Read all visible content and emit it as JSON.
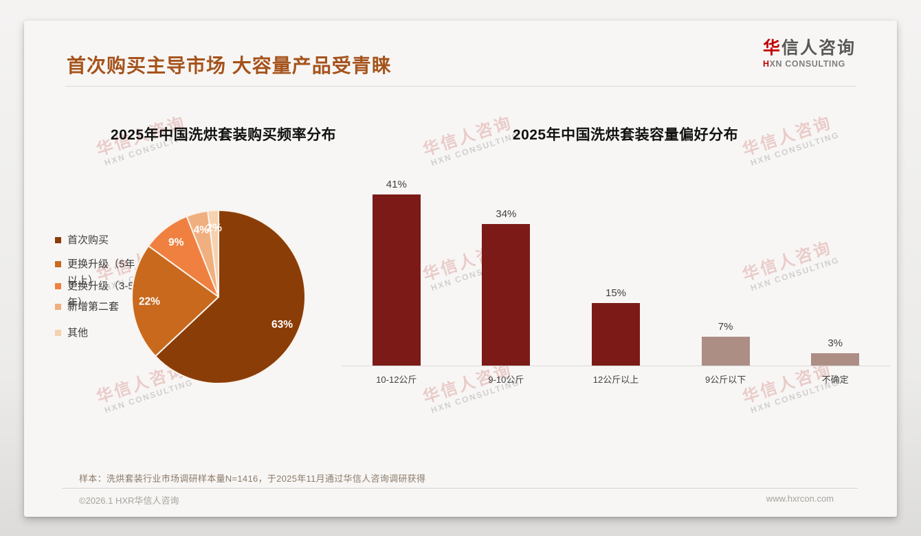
{
  "header": {
    "title": "首次购买主导市场 大容量产品受青睐",
    "title_color": "#A5531C",
    "logo": {
      "cn_first": "华",
      "cn_rest": "信人咨询",
      "en_first": "H",
      "en_rest": "XN CONSULTING",
      "accent_color": "#C00000"
    }
  },
  "watermark": {
    "cn": "华信人咨询",
    "en": "HXN CONSULTING"
  },
  "chart_data": [
    {
      "type": "pie",
      "title": "2025年中国洗烘套装购买频率分布",
      "unit": "percent",
      "start_angle": 0,
      "direction": "clockwise",
      "legend_position": "left",
      "label_color": "#ffffff",
      "slices": [
        {
          "label": "首次购买",
          "value": 63,
          "display": "63%",
          "color": "#8B3D08",
          "legend_lines": [
            "首次购买"
          ]
        },
        {
          "label": "更换升级（5年以上）",
          "value": 22,
          "display": "22%",
          "color": "#C8691E",
          "legend_lines": [
            "更换升级（5年",
            "以上）"
          ]
        },
        {
          "label": "更换升级（3-5年）",
          "value": 9,
          "display": "9%",
          "color": "#F08040",
          "legend_lines": [
            "更换升级（3-5",
            "年）"
          ]
        },
        {
          "label": "新增第二套",
          "value": 4,
          "display": "4%",
          "color": "#F0AF7E",
          "legend_lines": [
            "新增第二套"
          ]
        },
        {
          "label": "其他",
          "value": 2,
          "display": "2%",
          "color": "#F5D2B0",
          "legend_lines": [
            "其他"
          ]
        }
      ]
    },
    {
      "type": "bar",
      "title": "2025年中国洗烘套装容量偏好分布",
      "categories": [
        "10-12公斤",
        "9-10公斤",
        "12公斤以上",
        "9公斤以下",
        "不确定"
      ],
      "values": [
        41,
        34,
        15,
        7,
        3
      ],
      "value_labels": [
        "41%",
        "34%",
        "15%",
        "7%",
        "3%"
      ],
      "bar_colors": [
        "#7B1A16",
        "#7B1A16",
        "#7B1A16",
        "#AC8E85",
        "#AC8E85"
      ],
      "ylim": [
        0,
        45
      ],
      "grid": false,
      "axis_line_color": "#D9D9D9",
      "value_label_color": "#404040",
      "legend": "none"
    }
  ],
  "footer": {
    "note": "样本：洗烘套装行业市场调研样本量N=1416，于2025年11月通过华信人咨询调研获得",
    "copyright": "©2026.1 HXR华信人咨询",
    "website": "www.hxrcon.com"
  }
}
